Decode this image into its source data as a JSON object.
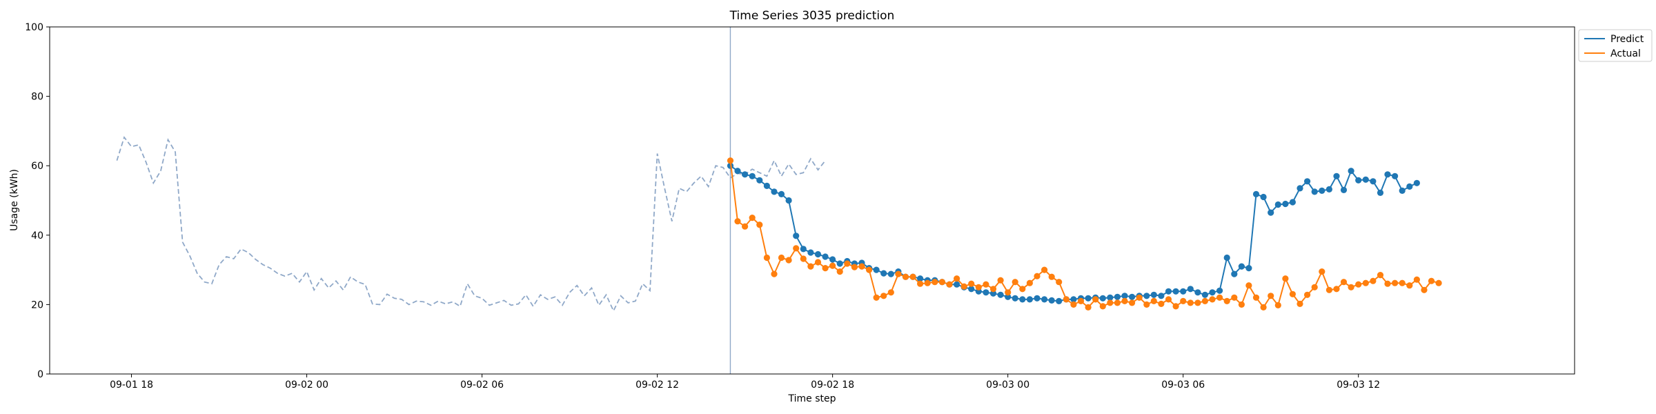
{
  "chart_data": {
    "type": "line",
    "title": "Time Series 3035 prediction",
    "xlabel": "Time step",
    "ylabel": "Usage (kWh)",
    "ylim": [
      0,
      100
    ],
    "yticks": [
      0,
      20,
      40,
      60,
      80,
      100
    ],
    "x_unit": "hours since 2024-09-01 12:00 (axis shows dates)",
    "xlim": [
      3.2,
      55.4
    ],
    "xticks": [
      {
        "x": 6,
        "label": "09-01 18"
      },
      {
        "x": 12,
        "label": "09-02 00"
      },
      {
        "x": 18,
        "label": "09-02 06"
      },
      {
        "x": 24,
        "label": "09-02 12"
      },
      {
        "x": 30,
        "label": "09-02 18"
      },
      {
        "x": 36,
        "label": "09-03 00"
      },
      {
        "x": 42,
        "label": "09-03 06"
      },
      {
        "x": 48,
        "label": "09-03 12"
      }
    ],
    "vline_x": 26.5,
    "colors": {
      "history": "#8fa8c8",
      "predict": "#1f77b4",
      "actual": "#ff7f0e",
      "vline": "#8fa8c8"
    },
    "legend": {
      "placement": "top-right outside",
      "entries": [
        "Predict",
        "Actual"
      ]
    },
    "history": {
      "start": 5.5,
      "step": 0.25,
      "values": [
        61.5,
        68.2,
        65.5,
        66,
        61,
        55,
        58.5,
        67.5,
        64,
        38,
        34,
        29,
        26.5,
        26,
        31.5,
        33.8,
        33.2,
        36,
        35,
        33,
        31.5,
        30.5,
        29,
        28.2,
        29,
        26.5,
        29.5,
        24.2,
        27.5,
        24.8,
        26.8,
        24.2,
        28,
        26.5,
        25.8,
        20.2,
        20,
        23,
        21.8,
        21.5,
        20,
        21,
        20.8,
        19.8,
        21,
        20.2,
        20.8,
        19.5,
        26,
        22.5,
        21.8,
        19.8,
        20.5,
        21.2,
        19.8,
        20.2,
        22.8,
        19.5,
        22.8,
        21.5,
        22.2,
        19.8,
        23.5,
        25.5,
        22.5,
        24.8,
        19.8,
        22.8,
        18.2,
        22.5,
        20.5,
        21,
        26,
        24,
        63.5,
        53.5,
        44,
        53.5,
        52.5,
        55,
        57,
        54,
        60,
        59.5,
        56.5,
        57.8,
        57.5,
        59,
        58,
        57,
        61.5,
        57,
        60.5,
        57.5,
        58,
        62,
        58.8,
        61.5
      ]
    },
    "series": [
      {
        "name": "Predict",
        "start": 26.5,
        "step": 0.25,
        "values": [
          60,
          58.5,
          57.5,
          57,
          55.8,
          54.2,
          52.5,
          51.8,
          50,
          39.8,
          36,
          35,
          34.5,
          33.8,
          33,
          31.8,
          32.5,
          31.8,
          32,
          30.5,
          30,
          29,
          28.8,
          29.5,
          28,
          28,
          27.5,
          27,
          27,
          26.5,
          25.8,
          25.8,
          25,
          24.5,
          23.8,
          23.5,
          23.2,
          22.8,
          22.2,
          21.8,
          21.5,
          21.5,
          21.8,
          21.5,
          21.2,
          21,
          21.5,
          21.5,
          21.8,
          21.8,
          22,
          21.8,
          22,
          22.2,
          22.5,
          22.2,
          22.5,
          22.5,
          22.8,
          22.5,
          23.8,
          23.8,
          23.8,
          24.5,
          23.5,
          22.8,
          23.5,
          24,
          33.5,
          28.8,
          31,
          30.5,
          51.8,
          51,
          46.5,
          48.8,
          49,
          49.5,
          53.5,
          55.5,
          52.5,
          52.8,
          53.2,
          57,
          53,
          58.5,
          55.8,
          56,
          55.5,
          52.2,
          57.5,
          57,
          52.8,
          54,
          55
        ]
      },
      {
        "name": "Actual",
        "start": 26.5,
        "step": 0.25,
        "values": [
          61.5,
          44,
          42.5,
          45,
          43,
          33.5,
          28.8,
          33.5,
          32.8,
          36.2,
          33.2,
          31,
          32.2,
          30.5,
          31.2,
          29.5,
          31.8,
          30.8,
          31,
          30,
          22,
          22.5,
          23.5,
          28.8,
          28,
          28,
          26,
          26.2,
          26.5,
          26.5,
          25.8,
          27.5,
          25.2,
          26,
          25,
          25.8,
          24.5,
          27,
          23.5,
          26.5,
          24.5,
          26.2,
          28.2,
          30,
          28,
          26.5,
          21.5,
          20,
          21,
          19.2,
          21.5,
          19.5,
          20.5,
          20.5,
          21,
          20.5,
          22,
          20,
          21,
          20.2,
          21.5,
          19.5,
          21,
          20.5,
          20.5,
          21,
          21.5,
          22,
          21,
          22,
          20,
          25.5,
          22,
          19.2,
          22.5,
          19.8,
          27.5,
          23,
          20.2,
          22.8,
          25,
          29.5,
          24.2,
          24.5,
          26.5,
          25,
          25.8,
          26.2,
          26.8,
          28.5,
          26,
          26.2,
          26.2,
          25.5,
          27.2,
          24.2,
          26.8,
          26.2
        ]
      }
    ]
  }
}
